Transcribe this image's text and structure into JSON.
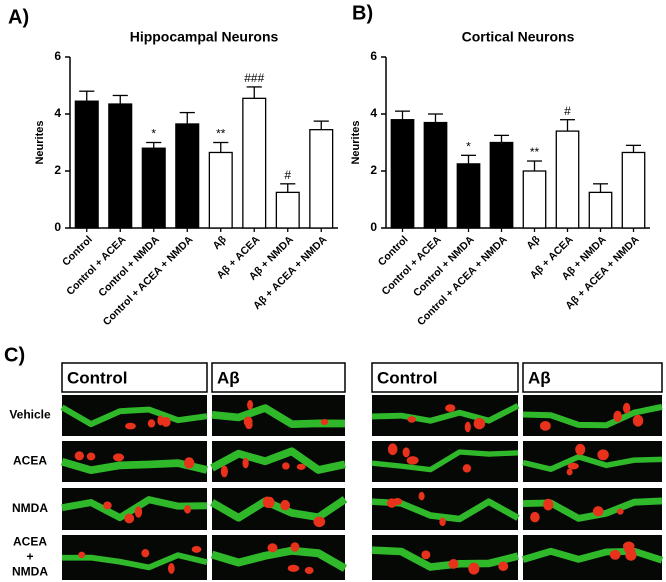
{
  "chart_data": [
    {
      "type": "bar",
      "label": "A)",
      "title": "Hippocampal Neurons",
      "y_label": "Neurites",
      "categories": [
        "Control",
        "Control + ACEA",
        "Control + NMDA",
        "Control + ACEA + NMDA",
        "Aβ",
        "Aβ + ACEA",
        "Aβ + NMDA",
        "Aβ + ACEA + NMDA"
      ],
      "values": [
        4.45,
        4.35,
        2.8,
        3.65,
        2.65,
        4.55,
        1.25,
        3.45
      ],
      "errors": [
        0.35,
        0.3,
        0.2,
        0.4,
        0.35,
        0.4,
        0.3,
        0.3
      ],
      "annotations": [
        null,
        null,
        "*",
        null,
        "**",
        "###",
        "#",
        null
      ],
      "colors": [
        "#000000",
        "#000000",
        "#000000",
        "#000000",
        "#ffffff",
        "#ffffff",
        "#ffffff",
        "#ffffff"
      ],
      "ylim": [
        0,
        6
      ],
      "yticks": [
        0,
        2,
        4,
        6
      ]
    },
    {
      "type": "bar",
      "label": "B)",
      "title": "Cortical Neurons",
      "y_label": "Neurites",
      "categories": [
        "Control",
        "Control + ACEA",
        "Control + NMDA",
        "Control + ACEA + NMDA",
        "Aβ",
        "Aβ + ACEA",
        "Aβ + NMDA",
        "Aβ + ACEA + NMDA"
      ],
      "values": [
        3.8,
        3.7,
        2.25,
        3.0,
        2.0,
        3.4,
        1.25,
        2.65
      ],
      "errors": [
        0.3,
        0.3,
        0.3,
        0.25,
        0.35,
        0.4,
        0.3,
        0.25
      ],
      "annotations": [
        null,
        null,
        "*",
        null,
        "**",
        "#",
        null,
        null
      ],
      "colors": [
        "#000000",
        "#000000",
        "#000000",
        "#000000",
        "#ffffff",
        "#ffffff",
        "#ffffff",
        "#ffffff"
      ],
      "ylim": [
        0,
        6
      ],
      "yticks": [
        0,
        2,
        4,
        6
      ]
    }
  ],
  "panel_c": {
    "label": "C)",
    "column_headers": [
      "Control",
      "Aβ",
      "Control",
      "Aβ"
    ],
    "row_labels": [
      "Vehicle",
      "ACEA",
      "NMDA",
      "ACEA\n+\nNMDA"
    ]
  }
}
